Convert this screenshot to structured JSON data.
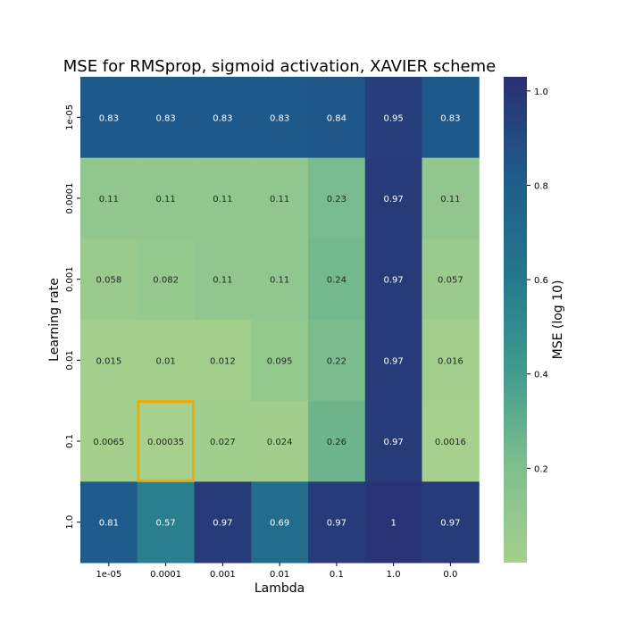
{
  "chart_data": {
    "type": "heatmap",
    "title": "MSE for RMSprop, sigmoid activation, XAVIER scheme",
    "xlabel": "Lambda",
    "ylabel": "Learning rate",
    "x_categories": [
      "1e-05",
      "0.0001",
      "0.001",
      "0.01",
      "0.1",
      "1.0",
      "0.0"
    ],
    "y_categories": [
      "1e-05",
      "0.0001",
      "0.001",
      "0.01",
      "0.1",
      "1.0"
    ],
    "values": [
      [
        0.83,
        0.83,
        0.83,
        0.83,
        0.84,
        0.95,
        0.83
      ],
      [
        0.11,
        0.11,
        0.11,
        0.11,
        0.23,
        0.97,
        0.11
      ],
      [
        0.058,
        0.082,
        0.11,
        0.11,
        0.24,
        0.97,
        0.057
      ],
      [
        0.015,
        0.01,
        0.012,
        0.095,
        0.22,
        0.97,
        0.016
      ],
      [
        0.0065,
        0.00035,
        0.027,
        0.024,
        0.26,
        0.97,
        0.0016
      ],
      [
        0.81,
        0.57,
        0.97,
        0.69,
        0.97,
        1,
        0.97
      ]
    ],
    "annotations": [
      [
        "0.83",
        "0.83",
        "0.83",
        "0.83",
        "0.84",
        "0.95",
        "0.83"
      ],
      [
        "0.11",
        "0.11",
        "0.11",
        "0.11",
        "0.23",
        "0.97",
        "0.11"
      ],
      [
        "0.058",
        "0.082",
        "0.11",
        "0.11",
        "0.24",
        "0.97",
        "0.057"
      ],
      [
        "0.015",
        "0.01",
        "0.012",
        "0.095",
        "0.22",
        "0.97",
        "0.016"
      ],
      [
        "0.0065",
        "0.00035",
        "0.027",
        "0.024",
        "0.26",
        "0.97",
        "0.0016"
      ],
      [
        "0.81",
        "0.57",
        "0.97",
        "0.69",
        "0.97",
        "1",
        "0.97"
      ]
    ],
    "highlight": {
      "row": 4,
      "col": 1,
      "color": "#f5a800"
    },
    "colorbar": {
      "label": "MSE (log 10)",
      "ticks": [
        "0.2",
        "0.4",
        "0.6",
        "0.8",
        "1.0"
      ],
      "tick_values": [
        0.2,
        0.4,
        0.6,
        0.8,
        1.0
      ],
      "range": [
        0,
        1.03
      ],
      "colormap": "crest"
    },
    "grid": false
  }
}
